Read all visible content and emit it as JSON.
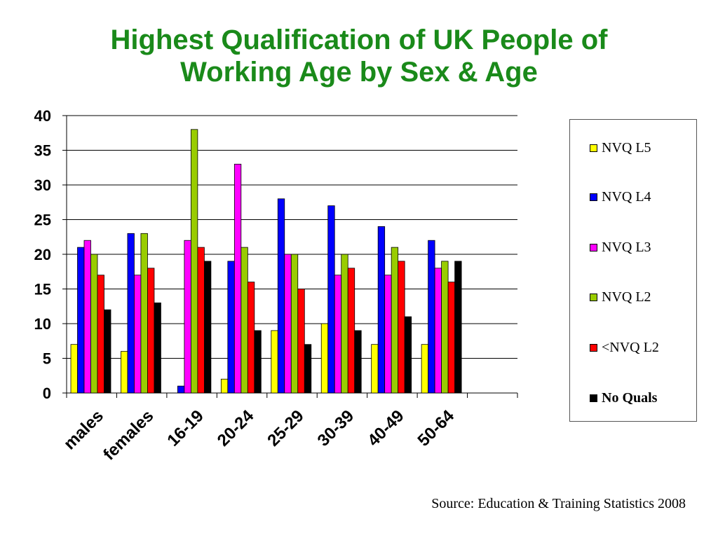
{
  "title_line1": "Highest Qualification of UK People of",
  "title_line2": "Working Age by Sex & Age",
  "source": "Source: Education & Training Statistics 2008",
  "chart_data": {
    "type": "bar",
    "title": "Highest Qualification of UK People of Working Age by Sex & Age",
    "xlabel": "",
    "ylabel": "",
    "ylim": [
      0,
      40
    ],
    "yticks": [
      0,
      5,
      10,
      15,
      20,
      25,
      30,
      35,
      40
    ],
    "grid": true,
    "legend_position": "right",
    "categories": [
      "males",
      "females",
      "16-19",
      "20-24",
      "25-29",
      "30-39",
      "40-49",
      "50-64"
    ],
    "series": [
      {
        "name": "NVQ L5",
        "color": "#ffff00",
        "values": [
          7,
          6,
          0,
          2,
          9,
          10,
          7,
          7
        ]
      },
      {
        "name": "NVQ L4",
        "color": "#0000ff",
        "values": [
          21,
          23,
          1,
          19,
          28,
          27,
          24,
          22
        ]
      },
      {
        "name": "NVQ L3",
        "color": "#ff00ff",
        "values": [
          22,
          17,
          22,
          33,
          20,
          17,
          17,
          18
        ]
      },
      {
        "name": "NVQ L2",
        "color": "#99cc00",
        "values": [
          20,
          23,
          38,
          21,
          20,
          20,
          21,
          19
        ]
      },
      {
        "name": "<NVQ L2",
        "color": "#ff0000",
        "values": [
          17,
          18,
          21,
          16,
          15,
          18,
          19,
          16
        ]
      },
      {
        "name": "No Quals",
        "color": "#000000",
        "values": [
          12,
          13,
          19,
          9,
          7,
          9,
          11,
          19
        ]
      }
    ]
  }
}
